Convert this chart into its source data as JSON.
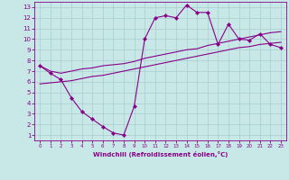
{
  "bg_color": "#c8e8e8",
  "line_color": "#880088",
  "grid_color": "#aacccc",
  "xlabel": "Windchill (Refroidissement éolien,°C)",
  "xlim": [
    -0.5,
    23.5
  ],
  "ylim": [
    0.5,
    13.5
  ],
  "xticks": [
    0,
    1,
    2,
    3,
    4,
    5,
    6,
    7,
    8,
    9,
    10,
    11,
    12,
    13,
    14,
    15,
    16,
    17,
    18,
    19,
    20,
    21,
    22,
    23
  ],
  "yticks": [
    1,
    2,
    3,
    4,
    5,
    6,
    7,
    8,
    9,
    10,
    11,
    12,
    13
  ],
  "line1_x": [
    0,
    1,
    2,
    3,
    4,
    5,
    6,
    7,
    8,
    9,
    10,
    11,
    12,
    13,
    14,
    15,
    16,
    17,
    18,
    19,
    20,
    21,
    22,
    23
  ],
  "line1_y": [
    7.5,
    6.8,
    6.2,
    4.5,
    3.2,
    2.5,
    1.8,
    1.2,
    1.0,
    3.7,
    10.0,
    12.0,
    12.2,
    12.0,
    13.2,
    12.5,
    12.5,
    9.5,
    11.4,
    10.0,
    9.9,
    10.5,
    9.5,
    9.2
  ],
  "line2_x": [
    0,
    1,
    2,
    3,
    4,
    5,
    6,
    7,
    8,
    9,
    10,
    11,
    12,
    13,
    14,
    15,
    16,
    17,
    18,
    19,
    20,
    21,
    22,
    23
  ],
  "line2_y": [
    5.8,
    5.9,
    6.0,
    6.1,
    6.3,
    6.5,
    6.6,
    6.8,
    7.0,
    7.2,
    7.4,
    7.6,
    7.8,
    8.0,
    8.2,
    8.4,
    8.6,
    8.8,
    9.0,
    9.2,
    9.3,
    9.5,
    9.6,
    9.7
  ],
  "line3_x": [
    0,
    1,
    2,
    3,
    4,
    5,
    6,
    7,
    8,
    9,
    10,
    11,
    12,
    13,
    14,
    15,
    16,
    17,
    18,
    19,
    20,
    21,
    22,
    23
  ],
  "line3_y": [
    7.5,
    7.0,
    6.8,
    7.0,
    7.2,
    7.3,
    7.5,
    7.6,
    7.7,
    7.9,
    8.2,
    8.4,
    8.6,
    8.8,
    9.0,
    9.1,
    9.4,
    9.6,
    9.8,
    10.0,
    10.2,
    10.4,
    10.6,
    10.7
  ]
}
